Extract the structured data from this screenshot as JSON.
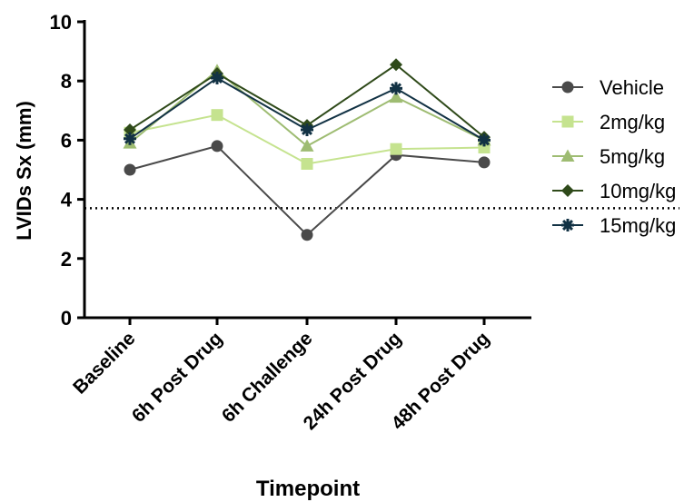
{
  "chart_data": {
    "type": "line",
    "xlabel": "Timepoint",
    "ylabel": "LVIDs Sx (mm)",
    "ylim": [
      0,
      10
    ],
    "yticks": [
      "0",
      "2",
      "4",
      "6",
      "8",
      "10"
    ],
    "categories": [
      "Baseline",
      "6h  Post Drug",
      "6h  Challenge",
      "24h  Post Drug",
      "48h  Post Drug"
    ],
    "reference_line": {
      "y": 3.7,
      "style": "dotted"
    },
    "grid": false,
    "legend_position": "right",
    "series": [
      {
        "name": "Vehicle",
        "marker": "circle",
        "color": "#4a4a4a",
        "values": [
          5.0,
          5.8,
          2.8,
          5.5,
          5.25
        ]
      },
      {
        "name": "2mg/kg",
        "marker": "square",
        "color": "#c5e38f",
        "values": [
          6.25,
          6.85,
          5.2,
          5.7,
          5.75
        ]
      },
      {
        "name": "5mg/kg",
        "marker": "triangle",
        "color": "#9ebc72",
        "values": [
          5.9,
          8.35,
          5.8,
          7.45,
          6.0
        ]
      },
      {
        "name": "10mg/kg",
        "marker": "diamond",
        "color": "#2f4a1a",
        "values": [
          6.35,
          8.25,
          6.5,
          8.55,
          6.1
        ]
      },
      {
        "name": "15mg/kg",
        "marker": "asterisk",
        "color": "#123244",
        "values": [
          6.05,
          8.1,
          6.35,
          7.75,
          6.0
        ]
      }
    ]
  }
}
